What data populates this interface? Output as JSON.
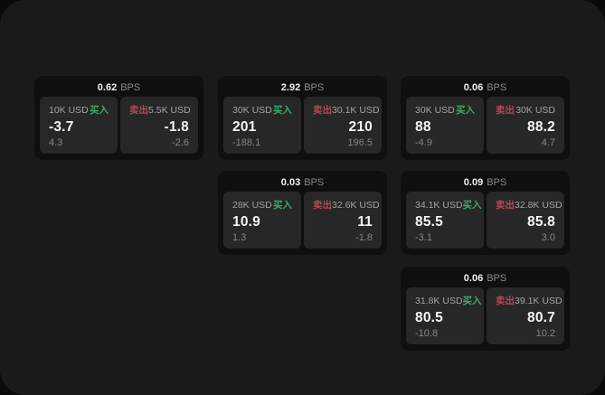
{
  "labels": {
    "bps_unit": "BPS",
    "buy": "买入",
    "sell": "卖出"
  },
  "colors": {
    "buy_green": "#3fa866",
    "sell_red": "#b34b56",
    "window_bg": "#1a1a1a",
    "card_bg": "#0f0f0f",
    "panel_bg": "#272727"
  },
  "cards": [
    {
      "bps": "0.62",
      "buy": {
        "amount": "10K USD",
        "price": "-3.7",
        "delta": "4.3"
      },
      "sell": {
        "amount": "5.5K USD",
        "price": "-1.8",
        "delta": "-2.6"
      }
    },
    {
      "bps": "2.92",
      "buy": {
        "amount": "30K USD",
        "price": "201",
        "delta": "-188.1"
      },
      "sell": {
        "amount": "30.1K USD",
        "price": "210",
        "delta": "196.5"
      }
    },
    {
      "bps": "0.06",
      "buy": {
        "amount": "30K USD",
        "price": "88",
        "delta": "-4.9"
      },
      "sell": {
        "amount": "30K USD",
        "price": "88.2",
        "delta": "4.7"
      }
    },
    {
      "bps": "0.03",
      "buy": {
        "amount": "28K USD",
        "price": "10.9",
        "delta": "1.3"
      },
      "sell": {
        "amount": "32.6K USD",
        "price": "11",
        "delta": "-1.8"
      }
    },
    {
      "bps": "0.09",
      "buy": {
        "amount": "34.1K USD",
        "price": "85.5",
        "delta": "-3.1"
      },
      "sell": {
        "amount": "32.8K USD",
        "price": "85.8",
        "delta": "3.0"
      }
    },
    {
      "bps": "0.06",
      "buy": {
        "amount": "31.8K USD",
        "price": "80.5",
        "delta": "-10.8"
      },
      "sell": {
        "amount": "39.1K USD",
        "price": "80.7",
        "delta": "10.2"
      }
    }
  ]
}
